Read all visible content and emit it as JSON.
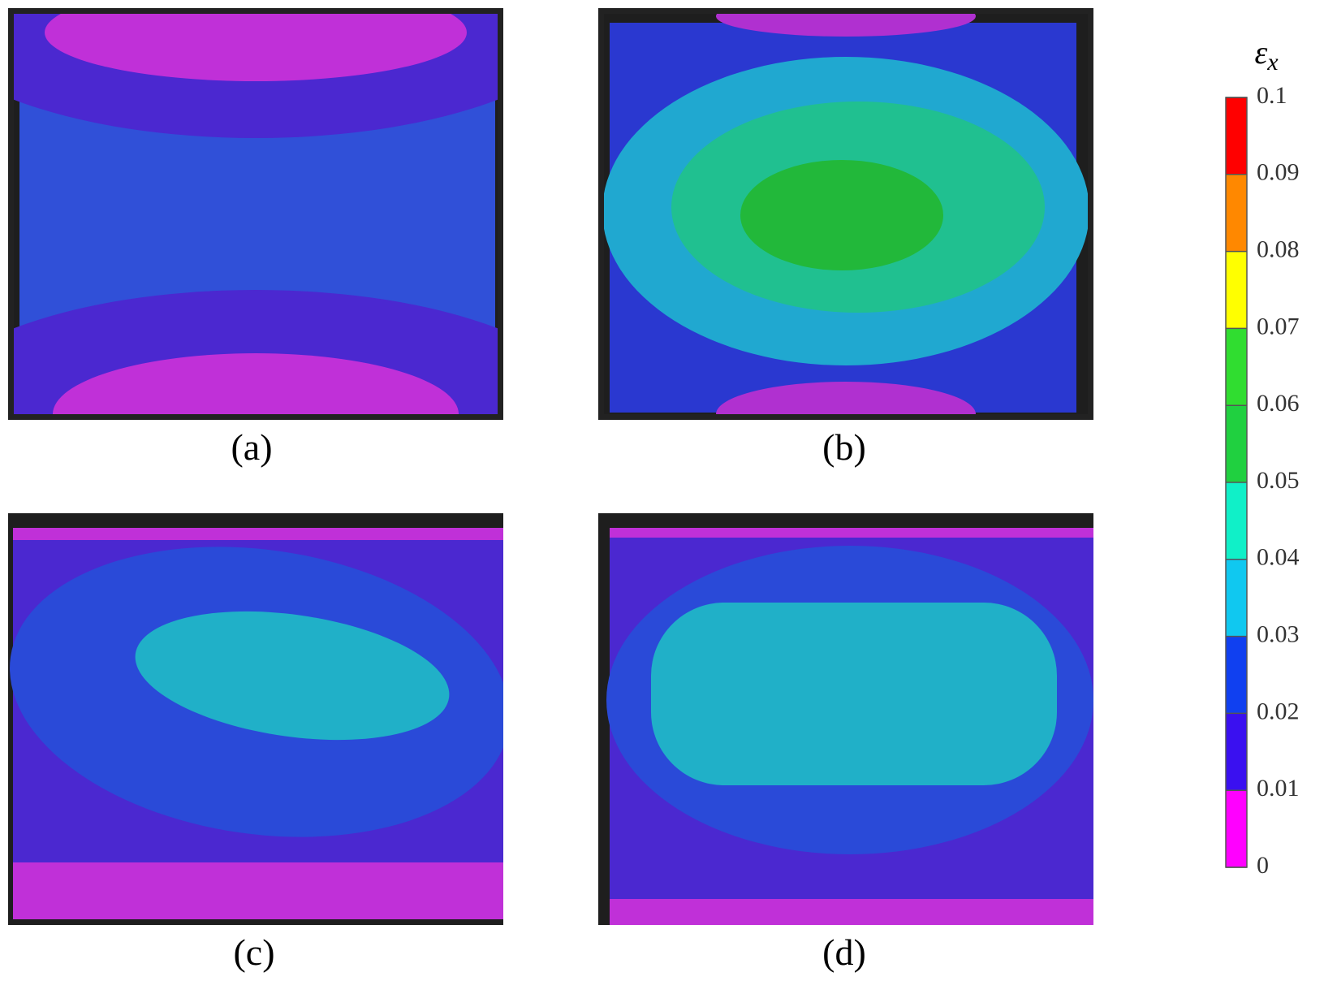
{
  "panels": [
    {
      "label": "(a)"
    },
    {
      "label": "(b)"
    },
    {
      "label": "(c)"
    },
    {
      "label": "(d)"
    }
  ],
  "colorbar": {
    "symbol": "ε",
    "subscript": "x",
    "ticks": [
      0,
      0.01,
      0.02,
      0.03,
      0.04,
      0.05,
      0.06,
      0.07,
      0.08,
      0.09,
      0.1
    ],
    "lim": [
      0,
      0.1
    ],
    "colors": [
      "#ff00ff",
      "#3a10f0",
      "#1040f0",
      "#10c8f0",
      "#10f0c8",
      "#20d040",
      "#30dd30",
      "#ffff00",
      "#ff8800",
      "#ff0000"
    ]
  }
}
